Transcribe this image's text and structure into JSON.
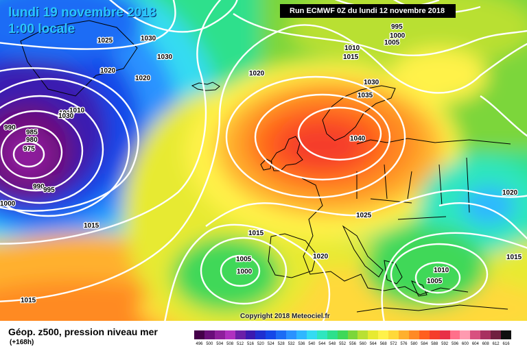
{
  "header": {
    "date": "lundi 19 novembre 2018",
    "time": "1:00 locale",
    "run": "Run ECMWF 0Z du lundi 12 novembre 2018"
  },
  "footer": {
    "title": "Géop. z500, pression niveau mer",
    "subtitle": "(+168h)",
    "copyright": "Copyright 2018 Meteociel.fr"
  },
  "pressure_labels": [
    "1025",
    "1030",
    "1030",
    "995",
    "1000",
    "1005",
    "1010",
    "1015",
    "1020",
    "1020",
    "1020",
    "1010",
    "1010",
    "1030",
    "990",
    "985",
    "980",
    "975",
    "990",
    "995",
    "1000",
    "1030",
    "1035",
    "1040",
    "1015",
    "1015",
    "1025",
    "1020",
    "1005",
    "1000",
    "1015",
    "1010",
    "1005",
    "1020",
    "1015"
  ],
  "legend_scale": {
    "values": [
      "496",
      "500",
      "504",
      "508",
      "512",
      "516",
      "520",
      "524",
      "528",
      "532",
      "536",
      "540",
      "544",
      "548",
      "552",
      "556",
      "560",
      "564",
      "568",
      "572",
      "576",
      "580",
      "584",
      "588",
      "592",
      "596",
      "600",
      "604",
      "608",
      "612",
      "616"
    ],
    "colors": [
      "#45004a",
      "#6a0e7a",
      "#8e1f9c",
      "#b030c0",
      "#6b1fa8",
      "#3b1ab0",
      "#1f2fd0",
      "#1447e8",
      "#1c6cf5",
      "#2a92ff",
      "#2fb7ff",
      "#34dbf2",
      "#2fe6bf",
      "#2de08c",
      "#3fd858",
      "#7cd63a",
      "#b9e033",
      "#e7ea31",
      "#fff24a",
      "#ffd93a",
      "#ffb02d",
      "#ff8a24",
      "#ff5f1f",
      "#f53d2a",
      "#e82f47",
      "#ff6f8a",
      "#ff9ab0",
      "#d85080",
      "#a83060",
      "#702040",
      "#101010"
    ]
  }
}
